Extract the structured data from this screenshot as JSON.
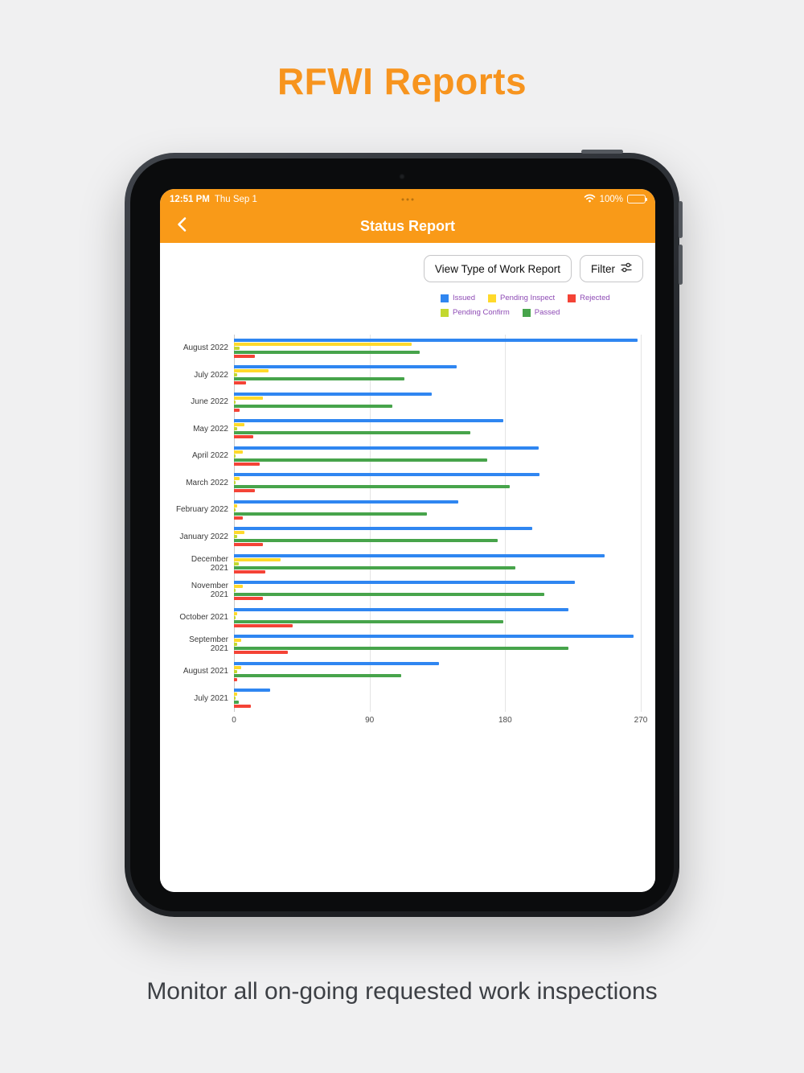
{
  "page": {
    "title": "RFWI Reports",
    "caption": "Monitor all on-going requested work inspections"
  },
  "theme": {
    "accent_orange": "#f7941e",
    "header_orange": "#f99a18",
    "legend_text_purple": "#8e4bb5"
  },
  "status_bar": {
    "time": "12:51 PM",
    "date": "Thu Sep 1",
    "battery_percent": "100%",
    "wifi_icon": "wifi-icon",
    "battery_icon": "battery-icon"
  },
  "nav": {
    "title": "Status Report",
    "back_icon": "chevron-left-icon"
  },
  "toolbar": {
    "view_type_button_label": "View Type of Work Report",
    "filter_button_label": "Filter",
    "filter_icon": "sliders-icon"
  },
  "chart_data": {
    "type": "bar",
    "orientation": "horizontal",
    "title": "Status Report",
    "xlabel": "",
    "ylabel": "",
    "xmax": 270,
    "xticks": [
      0,
      90,
      180,
      270
    ],
    "grid": "vertical",
    "legend_position": "top-right",
    "legend_rows": [
      [
        "Issued",
        "Pending Inspect",
        "Rejected"
      ],
      [
        "Pending Confirm",
        "Passed"
      ]
    ],
    "categories": [
      "August 2022",
      "July 2022",
      "June 2022",
      "May 2022",
      "April 2022",
      "March 2022",
      "February 2022",
      "January 2022",
      "December 2021",
      "November 2021",
      "October 2021",
      "September 2021",
      "August 2021",
      "July 2021"
    ],
    "series": [
      {
        "name": "Issued",
        "color": "#2f86f1",
        "values": [
          268,
          148,
          131,
          179,
          202,
          203,
          149,
          198,
          246,
          226,
          222,
          265,
          136,
          24
        ]
      },
      {
        "name": "Pending Inspect",
        "color": "#ffd92b",
        "values": [
          118,
          23,
          19,
          7,
          6,
          4,
          2,
          7,
          31,
          6,
          2,
          5,
          5,
          2
        ]
      },
      {
        "name": "Pending Confirm",
        "color": "#c3d82f",
        "values": [
          4,
          2,
          1,
          2,
          1,
          1,
          1,
          2,
          3,
          1,
          1,
          2,
          2,
          1
        ]
      },
      {
        "name": "Passed",
        "color": "#47a44b",
        "values": [
          123,
          113,
          105,
          157,
          168,
          183,
          128,
          175,
          187,
          206,
          179,
          222,
          111,
          3
        ]
      },
      {
        "name": "Rejected",
        "color": "#f44336",
        "values": [
          14,
          8,
          4,
          13,
          17,
          14,
          6,
          19,
          21,
          19,
          39,
          36,
          2,
          11
        ]
      }
    ]
  }
}
